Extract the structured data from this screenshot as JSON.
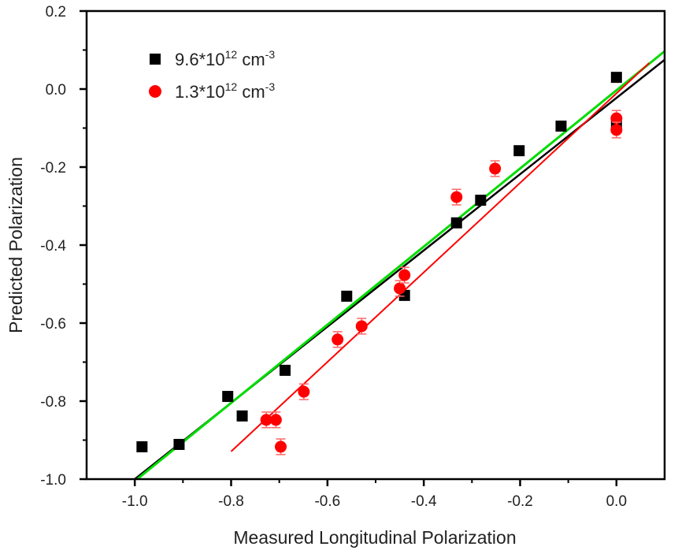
{
  "chart_data": {
    "type": "scatter",
    "title": "",
    "xlabel": "Measured Longitudinal Polarization",
    "ylabel": "Predicted Polarization",
    "xlim": [
      -1.1,
      0.1
    ],
    "ylim": [
      -1.0,
      0.2
    ],
    "xticks": [
      "-1.0",
      "-0.8",
      "-0.6",
      "-0.4",
      "-0.2",
      "0.0"
    ],
    "yticks": [
      "0.2",
      "0.0",
      "-0.2",
      "-0.4",
      "-0.6",
      "-0.8",
      "-1.0"
    ],
    "grid": false,
    "legend_position": "top-left",
    "series": [
      {
        "name": "9.6*10^12 cm^-3",
        "label_main": "9.6*10",
        "label_exp": "12",
        "label_unit": " cm",
        "label_unit_exp": "-3",
        "marker": "square",
        "color": "#000000",
        "points": [
          [
            -0.985,
            -0.917
          ],
          [
            -0.908,
            -0.911
          ],
          [
            -0.807,
            -0.788
          ],
          [
            -0.777,
            -0.838
          ],
          [
            -0.688,
            -0.721
          ],
          [
            -0.56,
            -0.531
          ],
          [
            -0.44,
            -0.529
          ],
          [
            -0.332,
            -0.343
          ],
          [
            -0.282,
            -0.285
          ],
          [
            -0.202,
            -0.158
          ],
          [
            -0.115,
            -0.095
          ],
          [
            0.0,
            0.03
          ],
          [
            0.0,
            -0.095
          ]
        ]
      },
      {
        "name": "1.3*10^12 cm^-3",
        "label_main": "1.3*10",
        "label_exp": "12",
        "label_unit": " cm",
        "label_unit_exp": "-3",
        "marker": "circle",
        "color": "#ff0000",
        "error": 0.02,
        "points": [
          [
            -0.727,
            -0.848
          ],
          [
            -0.707,
            -0.848
          ],
          [
            -0.697,
            -0.917
          ],
          [
            -0.649,
            -0.776
          ],
          [
            -0.579,
            -0.642
          ],
          [
            -0.529,
            -0.608
          ],
          [
            -0.45,
            -0.511
          ],
          [
            -0.44,
            -0.477
          ],
          [
            -0.332,
            -0.277
          ],
          [
            -0.252,
            -0.204
          ],
          [
            0.0,
            -0.075
          ],
          [
            0.0,
            -0.105
          ]
        ]
      }
    ],
    "fit_lines": [
      {
        "color": "#000000",
        "from": [
          -1.0,
          -1.0
        ],
        "to": [
          0.1,
          0.075
        ]
      },
      {
        "color": "#00dd00",
        "from": [
          -0.995,
          -1.0
        ],
        "to": [
          0.1,
          0.097
        ]
      },
      {
        "color": "#ff0000",
        "from": [
          -0.8,
          -0.929
        ],
        "to": [
          0.068,
          0.067
        ]
      }
    ]
  }
}
